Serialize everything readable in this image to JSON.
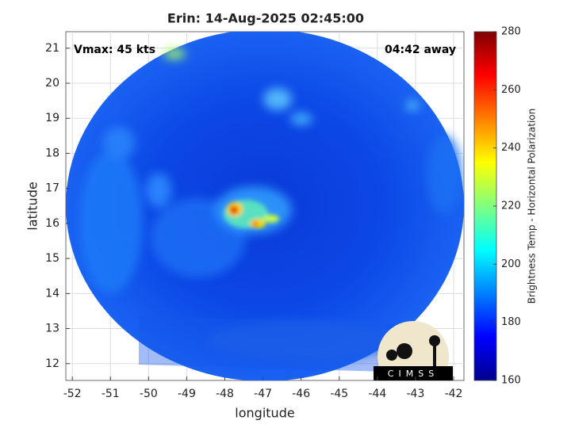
{
  "chart_data": {
    "type": "map",
    "title": "Erin: 14-Aug-2025 02:45:00",
    "annotations": [
      "Vmax: 45 kts",
      "04:42 away"
    ],
    "xlabel": "longitude",
    "ylabel": "latitude",
    "xlim": [
      -52.17,
      -41.73
    ],
    "xticks": [
      -52,
      -51,
      -50,
      -49,
      -48,
      -47,
      -46,
      -45,
      -44,
      -43,
      -42
    ],
    "ylim": [
      11.52,
      21.47
    ],
    "yticks": [
      12,
      13,
      14,
      15,
      16,
      17,
      18,
      19,
      20,
      21
    ],
    "grid": true,
    "colorbar": {
      "label": "Brightness Temp - Horizontal Polarization",
      "colormap": "jet",
      "lim": [
        160,
        280
      ],
      "ticks": [
        160,
        180,
        200,
        220,
        240,
        260,
        280
      ]
    },
    "logo": "CIMSS"
  }
}
